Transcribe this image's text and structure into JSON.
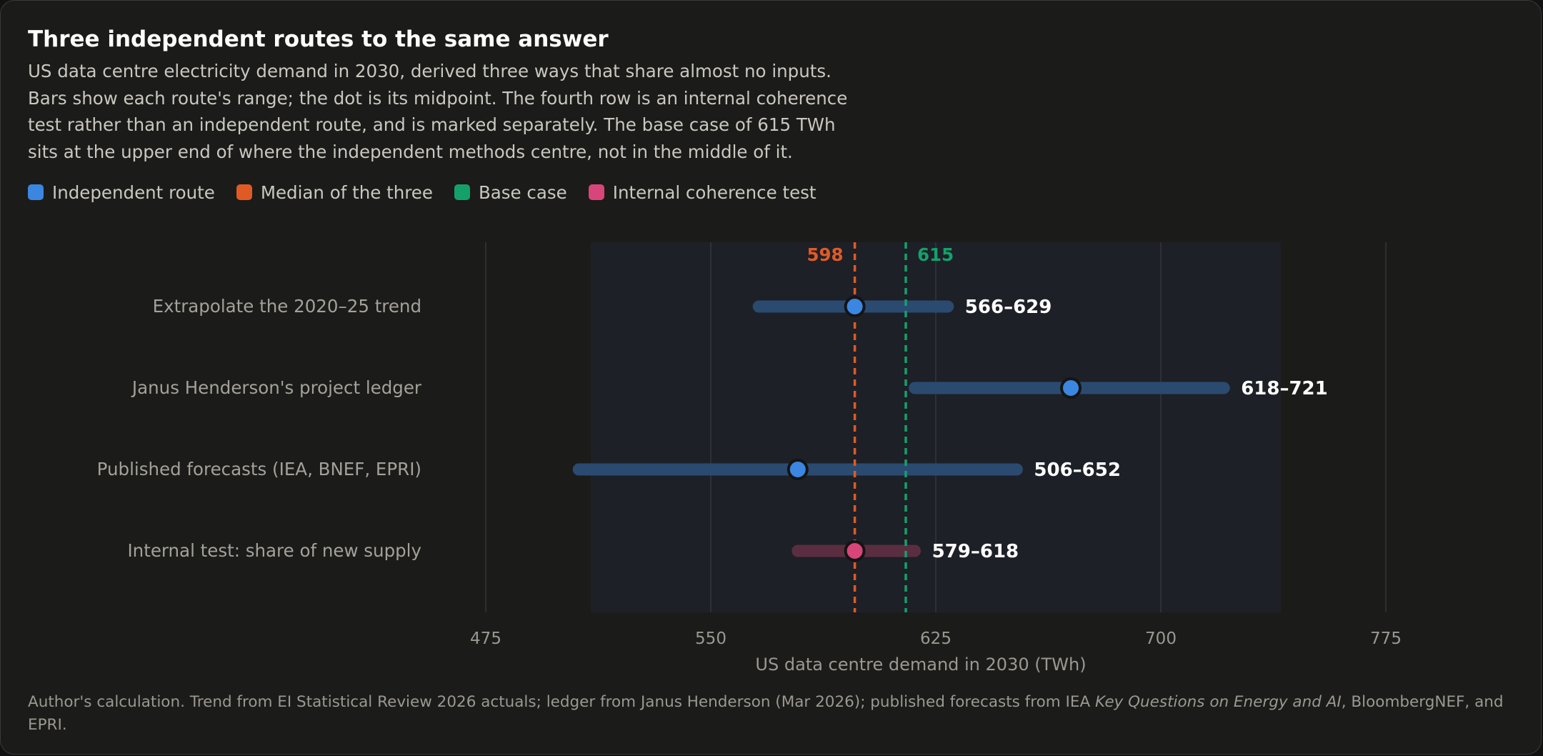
{
  "title": "Three independent routes to the same answer",
  "subtitle_lines": [
    "US data centre electricity demand in 2030, derived three ways that share almost no inputs.",
    "Bars show each route's range; the dot is its midpoint. The fourth row is an internal coherence",
    "test rather than an independent route, and is marked separately. The base case of 615 TWh",
    "sits at the upper end of where the independent methods centre, not in the middle of it."
  ],
  "legend": [
    {
      "label": "Independent route",
      "color": "#3b86e0"
    },
    {
      "label": "Median of the three",
      "color": "#e05a25"
    },
    {
      "label": "Base case",
      "color": "#14a06a"
    },
    {
      "label": "Internal coherence test",
      "color": "#d8457a"
    }
  ],
  "footer": {
    "part1": "Author's calculation. Trend from EI Statistical Review 2026 actuals; ledger from Janus Henderson (Mar 2026); published forecasts from IEA ",
    "italic": "Key Questions on Energy and AI",
    "part2": ", BloombergNEF, and EPRI."
  },
  "chart_data": {
    "type": "range",
    "xlabel": "US data centre demand in 2030 (TWh)",
    "xlim": [
      475,
      775
    ],
    "xticks": [
      475,
      550,
      625,
      700,
      775
    ],
    "shaded_band": [
      510,
      740
    ],
    "rows": [
      {
        "label": "Extrapolate the 2020–25 trend",
        "low": 566,
        "high": 629,
        "mid": 598,
        "range_label": "566–629",
        "kind": "independent"
      },
      {
        "label": "Janus Henderson's project ledger",
        "low": 618,
        "high": 721,
        "mid": 670,
        "range_label": "618–721",
        "kind": "independent"
      },
      {
        "label": "Published forecasts (IEA, BNEF, EPRI)",
        "low": 506,
        "high": 652,
        "mid": 579,
        "range_label": "506–652",
        "kind": "independent"
      },
      {
        "label": "Internal test: share of new supply",
        "low": 579,
        "high": 618,
        "mid": 598,
        "range_label": "579–618",
        "kind": "coherence"
      }
    ],
    "reference_lines": [
      {
        "value": 598,
        "label": "598",
        "kind": "median",
        "color": "#e05a25"
      },
      {
        "value": 615,
        "label": "615",
        "kind": "base",
        "color": "#14a06a"
      }
    ],
    "colors": {
      "independent_dot": "#3b86e0",
      "independent_bar": "#2b4a70",
      "coherence_dot": "#d8457a",
      "coherence_bar": "#5a2e40"
    }
  }
}
